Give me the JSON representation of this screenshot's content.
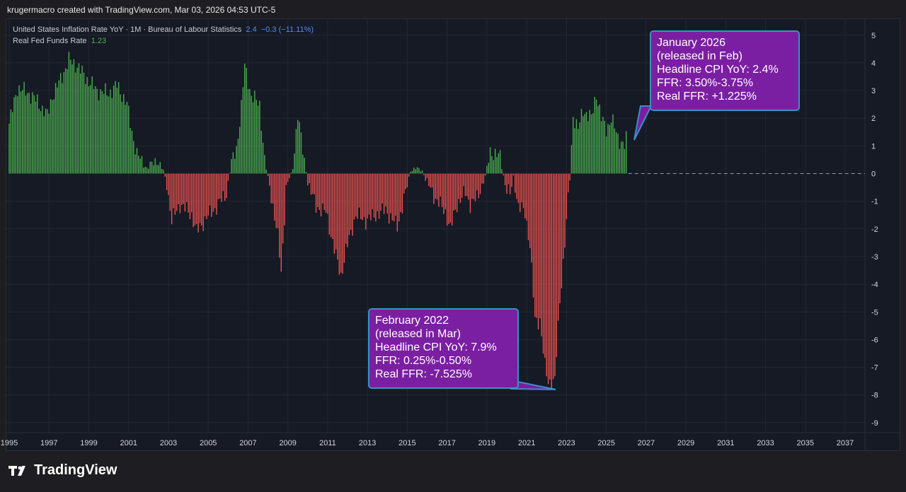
{
  "header": {
    "credit": "krugermacro created with TradingView.com, Mar 03, 2026 04:53 UTC-5"
  },
  "legend": {
    "series1_label": "United States Inflation Rate YoY · 1M · Bureau of Labour Statistics",
    "series1_value": "2.4",
    "series1_change": "−0.3 (−11.11%)",
    "series2_label": "Real Fed Funds Rate",
    "series2_value": "1.23"
  },
  "callout_jan2026": {
    "lines": [
      "January 2026",
      "(released in Feb)",
      "Headline CPI YoY: 2.4%",
      "FFR: 3.50%-3.75%",
      "Real FFR: +1.225%"
    ]
  },
  "callout_feb2022": {
    "lines": [
      "February 2022",
      "(released in Mar)",
      "Headline CPI YoY: 7.9%",
      "FFR: 0.25%-0.50%",
      "Real FFR: -7.525%"
    ]
  },
  "branding": {
    "logo_text": "TradingView",
    "logo_icon": "tradingview-logo-icon"
  },
  "colors": {
    "positive": "#4caf50",
    "negative": "#ef5350",
    "background": "#161a25",
    "grid": "#232734",
    "callout_fill": "#7b1fa2",
    "callout_border": "#3a8fc9"
  },
  "chart_data": {
    "type": "bar",
    "series_name": "Real Fed Funds Rate",
    "ylim": [
      -9,
      5
    ],
    "y_ticks": [
      5,
      4,
      3,
      2,
      1,
      0,
      -1,
      -2,
      -3,
      -4,
      -5,
      -6,
      -7,
      -8,
      -9
    ],
    "x_tick_labels": [
      "1995",
      "1997",
      "1999",
      "2001",
      "2003",
      "2005",
      "2007",
      "2009",
      "2011",
      "2013",
      "2015",
      "2017",
      "2019",
      "2021",
      "2023",
      "2025",
      "2027",
      "2029",
      "2031",
      "2033",
      "2035",
      "2037"
    ],
    "x_range": [
      1995.0,
      2038.0
    ],
    "zero_line": "dashed after last bar",
    "grid": true,
    "frequency": "monthly",
    "monthly_anchors": [
      {
        "date": "1995-01",
        "value": 1.8
      },
      {
        "date": "1995-06",
        "value": 3.1
      },
      {
        "date": "1996-01",
        "value": 2.9
      },
      {
        "date": "1996-06",
        "value": 2.6
      },
      {
        "date": "1996-12",
        "value": 2.1
      },
      {
        "date": "1997-03",
        "value": 2.8
      },
      {
        "date": "1997-08",
        "value": 3.4
      },
      {
        "date": "1998-01",
        "value": 4.1
      },
      {
        "date": "1998-06",
        "value": 3.9
      },
      {
        "date": "1998-12",
        "value": 3.4
      },
      {
        "date": "1999-06",
        "value": 3.0
      },
      {
        "date": "2000-01",
        "value": 2.9
      },
      {
        "date": "2000-06",
        "value": 3.2
      },
      {
        "date": "2000-12",
        "value": 2.5
      },
      {
        "date": "2001-03",
        "value": 1.5
      },
      {
        "date": "2001-06",
        "value": 0.7
      },
      {
        "date": "2001-12",
        "value": 0.2
      },
      {
        "date": "2002-06",
        "value": 0.5
      },
      {
        "date": "2002-10",
        "value": 0.1
      },
      {
        "date": "2002-12",
        "value": -0.4
      },
      {
        "date": "2003-03",
        "value": -1.7
      },
      {
        "date": "2003-08",
        "value": -1.1
      },
      {
        "date": "2004-03",
        "value": -1.5
      },
      {
        "date": "2004-06",
        "value": -2.1
      },
      {
        "date": "2004-12",
        "value": -1.6
      },
      {
        "date": "2005-06",
        "value": -1.2
      },
      {
        "date": "2005-12",
        "value": -0.7
      },
      {
        "date": "2006-03",
        "value": 0.4
      },
      {
        "date": "2006-06",
        "value": 0.9
      },
      {
        "date": "2006-09",
        "value": 2.4
      },
      {
        "date": "2006-11",
        "value": 3.9
      },
      {
        "date": "2007-03",
        "value": 2.8
      },
      {
        "date": "2007-08",
        "value": 2.5
      },
      {
        "date": "2007-11",
        "value": 0.5
      },
      {
        "date": "2008-03",
        "value": -0.8
      },
      {
        "date": "2008-07",
        "value": -2.3
      },
      {
        "date": "2008-09",
        "value": -3.6
      },
      {
        "date": "2008-12",
        "value": -0.5
      },
      {
        "date": "2009-04",
        "value": 0.2
      },
      {
        "date": "2009-07",
        "value": 2.2
      },
      {
        "date": "2009-10",
        "value": 0.8
      },
      {
        "date": "2010-01",
        "value": -0.3
      },
      {
        "date": "2010-06",
        "value": -1.2
      },
      {
        "date": "2010-12",
        "value": -1.4
      },
      {
        "date": "2011-06",
        "value": -3.0
      },
      {
        "date": "2011-09",
        "value": -3.7
      },
      {
        "date": "2011-12",
        "value": -2.8
      },
      {
        "date": "2012-06",
        "value": -1.5
      },
      {
        "date": "2012-12",
        "value": -1.7
      },
      {
        "date": "2013-06",
        "value": -1.5
      },
      {
        "date": "2013-12",
        "value": -1.3
      },
      {
        "date": "2014-03",
        "value": -1.6
      },
      {
        "date": "2014-07",
        "value": -1.9
      },
      {
        "date": "2014-12",
        "value": -0.7
      },
      {
        "date": "2015-03",
        "value": 0.1
      },
      {
        "date": "2015-06",
        "value": 0.2
      },
      {
        "date": "2015-10",
        "value": 0.1
      },
      {
        "date": "2015-12",
        "value": -0.2
      },
      {
        "date": "2016-06",
        "value": -0.9
      },
      {
        "date": "2016-12",
        "value": -1.4
      },
      {
        "date": "2017-03",
        "value": -2.0
      },
      {
        "date": "2017-07",
        "value": -1.1
      },
      {
        "date": "2017-12",
        "value": -0.7
      },
      {
        "date": "2018-03",
        "value": -1.1
      },
      {
        "date": "2018-07",
        "value": -0.9
      },
      {
        "date": "2018-12",
        "value": -0.1
      },
      {
        "date": "2019-03",
        "value": 0.8
      },
      {
        "date": "2019-06",
        "value": 0.7
      },
      {
        "date": "2019-09",
        "value": 0.6
      },
      {
        "date": "2019-12",
        "value": -0.4
      },
      {
        "date": "2020-03",
        "value": -0.8
      },
      {
        "date": "2020-05",
        "value": -0.1
      },
      {
        "date": "2020-08",
        "value": -1.2
      },
      {
        "date": "2020-12",
        "value": -1.4
      },
      {
        "date": "2021-03",
        "value": -2.6
      },
      {
        "date": "2021-06",
        "value": -5.3
      },
      {
        "date": "2021-09",
        "value": -5.3
      },
      {
        "date": "2021-12",
        "value": -7.0
      },
      {
        "date": "2022-02",
        "value": -7.525
      },
      {
        "date": "2022-06",
        "value": -7.5
      },
      {
        "date": "2022-09",
        "value": -4.6
      },
      {
        "date": "2022-12",
        "value": -2.5
      },
      {
        "date": "2023-03",
        "value": -0.2
      },
      {
        "date": "2023-05",
        "value": 2.1
      },
      {
        "date": "2023-08",
        "value": 1.6
      },
      {
        "date": "2023-11",
        "value": 2.3
      },
      {
        "date": "2024-04",
        "value": 2.0
      },
      {
        "date": "2024-07",
        "value": 2.9
      },
      {
        "date": "2024-10",
        "value": 2.0
      },
      {
        "date": "2025-01",
        "value": 1.6
      },
      {
        "date": "2025-04",
        "value": 2.0
      },
      {
        "date": "2025-08",
        "value": 1.3
      },
      {
        "date": "2025-12",
        "value": 1.0
      },
      {
        "date": "2026-01",
        "value": 1.225
      }
    ]
  }
}
